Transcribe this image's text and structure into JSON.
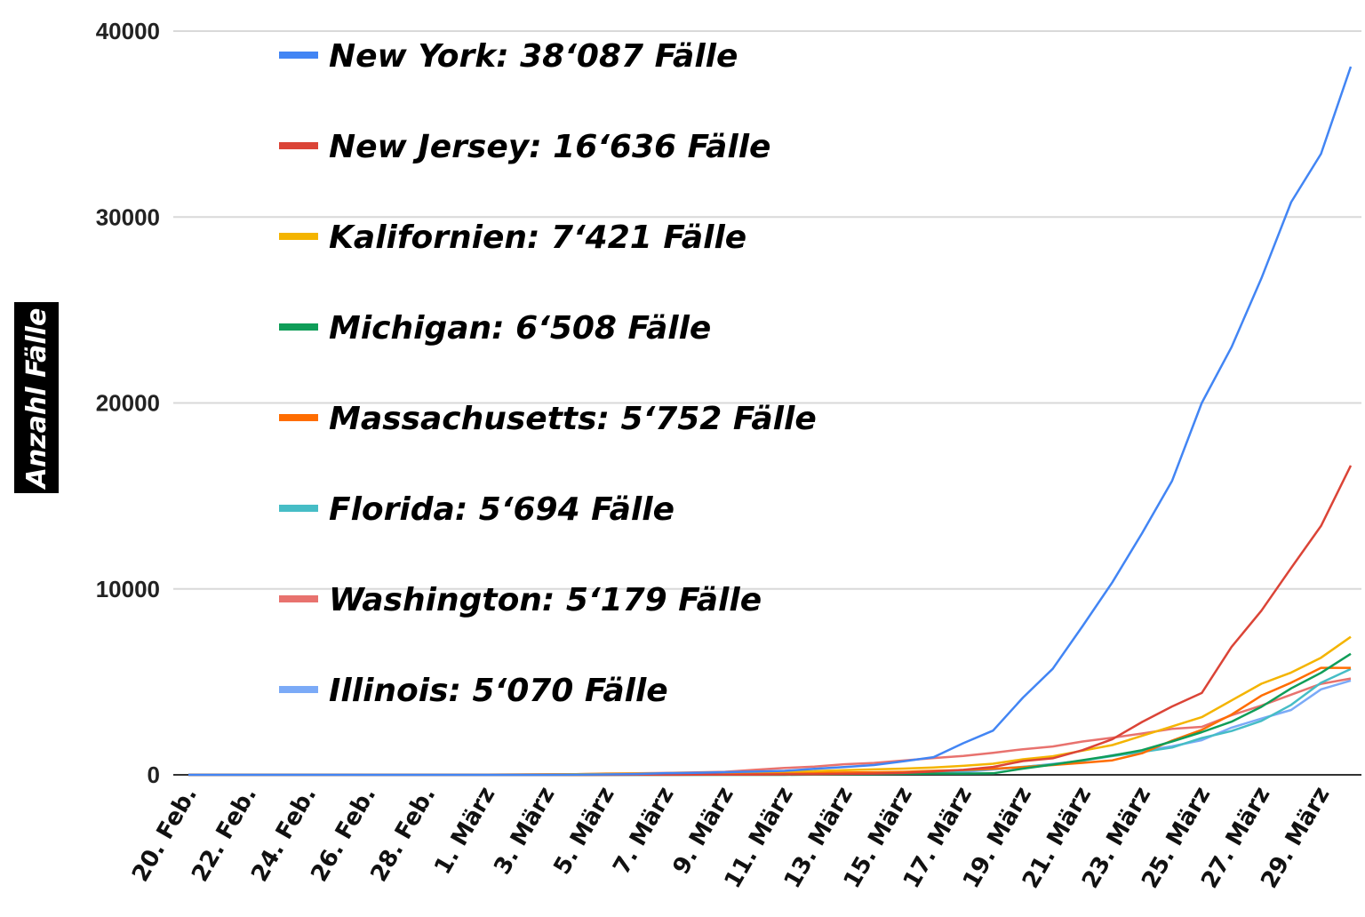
{
  "chart_data": {
    "type": "line",
    "ylabel": "Anzahl Fälle",
    "ylim": [
      0,
      40000
    ],
    "yticks": [
      "0",
      "10000",
      "20000",
      "30000",
      "40000"
    ],
    "ytick_values": [
      0,
      10000,
      20000,
      30000,
      40000
    ],
    "x_tick_labels": [
      "20. Feb.",
      "22. Feb.",
      "24. Feb.",
      "26. Feb.",
      "28. Feb.",
      "1. März",
      "3. März",
      "5. März",
      "7. März",
      "9. März",
      "11. März",
      "13. März",
      "15. März",
      "17. März",
      "19. März",
      "21. März",
      "23. März",
      "25. März",
      "27. März",
      "29. März"
    ],
    "x_tick_dates": [
      "2020-02-20",
      "2020-02-22",
      "2020-02-24",
      "2020-02-26",
      "2020-02-28",
      "2020-03-01",
      "2020-03-03",
      "2020-03-05",
      "2020-03-07",
      "2020-03-09",
      "2020-03-11",
      "2020-03-13",
      "2020-03-15",
      "2020-03-17",
      "2020-03-19",
      "2020-03-21",
      "2020-03-23",
      "2020-03-25",
      "2020-03-27",
      "2020-03-29"
    ],
    "x": [
      "2020-02-20",
      "2020-02-21",
      "2020-02-22",
      "2020-02-23",
      "2020-02-24",
      "2020-02-25",
      "2020-02-26",
      "2020-02-27",
      "2020-02-28",
      "2020-02-29",
      "2020-03-01",
      "2020-03-02",
      "2020-03-03",
      "2020-03-04",
      "2020-03-05",
      "2020-03-06",
      "2020-03-07",
      "2020-03-08",
      "2020-03-09",
      "2020-03-10",
      "2020-03-11",
      "2020-03-12",
      "2020-03-13",
      "2020-03-14",
      "2020-03-15",
      "2020-03-16",
      "2020-03-17",
      "2020-03-18",
      "2020-03-19",
      "2020-03-20",
      "2020-03-21",
      "2020-03-22",
      "2020-03-23",
      "2020-03-24",
      "2020-03-25",
      "2020-03-26",
      "2020-03-27",
      "2020-03-28",
      "2020-03-29",
      "2020-03-30"
    ],
    "grid": true,
    "legend_placement": "top-left",
    "series": [
      {
        "name": "New York: 38‘087 Fälle",
        "color": "#4285f4",
        "values": [
          0,
          0,
          0,
          0,
          0,
          0,
          0,
          0,
          0,
          0,
          1,
          1,
          2,
          11,
          22,
          44,
          89,
          106,
          142,
          173,
          216,
          325,
          421,
          524,
          729,
          950,
          1700,
          2382,
          4152,
          5700,
          8000,
          10356,
          13000,
          15800,
          20000,
          23000,
          26700,
          30800,
          33400,
          38087
        ]
      },
      {
        "name": "New Jersey: 16‘636 Fälle",
        "color": "#db4437",
        "values": [
          0,
          0,
          0,
          0,
          0,
          0,
          0,
          0,
          0,
          0,
          0,
          0,
          0,
          1,
          2,
          4,
          6,
          8,
          11,
          15,
          23,
          29,
          50,
          69,
          98,
          178,
          267,
          427,
          742,
          890,
          1327,
          1914,
          2844,
          3675,
          4402,
          6876,
          8825,
          11124,
          13386,
          16636
        ]
      },
      {
        "name": "Kalifornien: 7‘421 Fälle",
        "color": "#f4b400",
        "values": [
          1,
          1,
          1,
          1,
          1,
          2,
          3,
          5,
          6,
          7,
          12,
          19,
          25,
          34,
          52,
          65,
          88,
          112,
          133,
          157,
          177,
          198,
          252,
          293,
          335,
          392,
          482,
          598,
          836,
          1000,
          1300,
          1600,
          2100,
          2600,
          3100,
          4000,
          4900,
          5500,
          6300,
          7421
        ]
      },
      {
        "name": "Michigan: 6‘508 Fälle",
        "color": "#0f9d58",
        "values": [
          0,
          0,
          0,
          0,
          0,
          0,
          0,
          0,
          0,
          0,
          0,
          0,
          0,
          0,
          0,
          0,
          0,
          0,
          0,
          0,
          2,
          12,
          25,
          33,
          53,
          65,
          65,
          80,
          334,
          549,
          787,
          1035,
          1328,
          1791,
          2294,
          2856,
          3657,
          4650,
          5486,
          6508
        ]
      },
      {
        "name": "Massachusetts: 5‘752 Fälle",
        "color": "#ff6d00",
        "values": [
          0,
          0,
          0,
          0,
          0,
          0,
          0,
          0,
          0,
          0,
          1,
          1,
          1,
          2,
          8,
          13,
          28,
          41,
          41,
          92,
          95,
          108,
          123,
          138,
          164,
          218,
          256,
          328,
          413,
          525,
          646,
          777,
          1159,
          1838,
          2417,
          3240,
          4257,
          4955,
          5752,
          5752
        ]
      },
      {
        "name": "Florida: 5‘694 Fälle",
        "color": "#46bdc6",
        "values": [
          0,
          0,
          0,
          0,
          0,
          0,
          0,
          0,
          0,
          0,
          2,
          2,
          2,
          2,
          4,
          7,
          10,
          12,
          13,
          15,
          28,
          35,
          50,
          76,
          115,
          155,
          216,
          314,
          432,
          563,
          763,
          1007,
          1227,
          1467,
          1977,
          2355,
          2900,
          3763,
          4950,
          5694
        ]
      },
      {
        "name": "Washington: 5‘179 Fälle",
        "color": "#e8726e",
        "values": [
          1,
          1,
          1,
          1,
          1,
          1,
          1,
          1,
          1,
          2,
          9,
          18,
          27,
          39,
          70,
          79,
          102,
          136,
          162,
          267,
          366,
          442,
          568,
          642,
          769,
          904,
          1012,
          1187,
          1376,
          1524,
          1793,
          1996,
          2221,
          2469,
          2580,
          3207,
          3723,
          4310,
          4896,
          5179
        ]
      },
      {
        "name": "Illinois: 5‘070 Fälle",
        "color": "#7baaf7",
        "values": [
          0,
          0,
          0,
          0,
          0,
          0,
          0,
          0,
          0,
          1,
          3,
          4,
          4,
          4,
          5,
          6,
          7,
          7,
          11,
          19,
          25,
          32,
          46,
          64,
          93,
          105,
          160,
          288,
          422,
          585,
          753,
          1049,
          1285,
          1535,
          1865,
          2538,
          3026,
          3491,
          4596,
          5070
        ]
      }
    ]
  }
}
